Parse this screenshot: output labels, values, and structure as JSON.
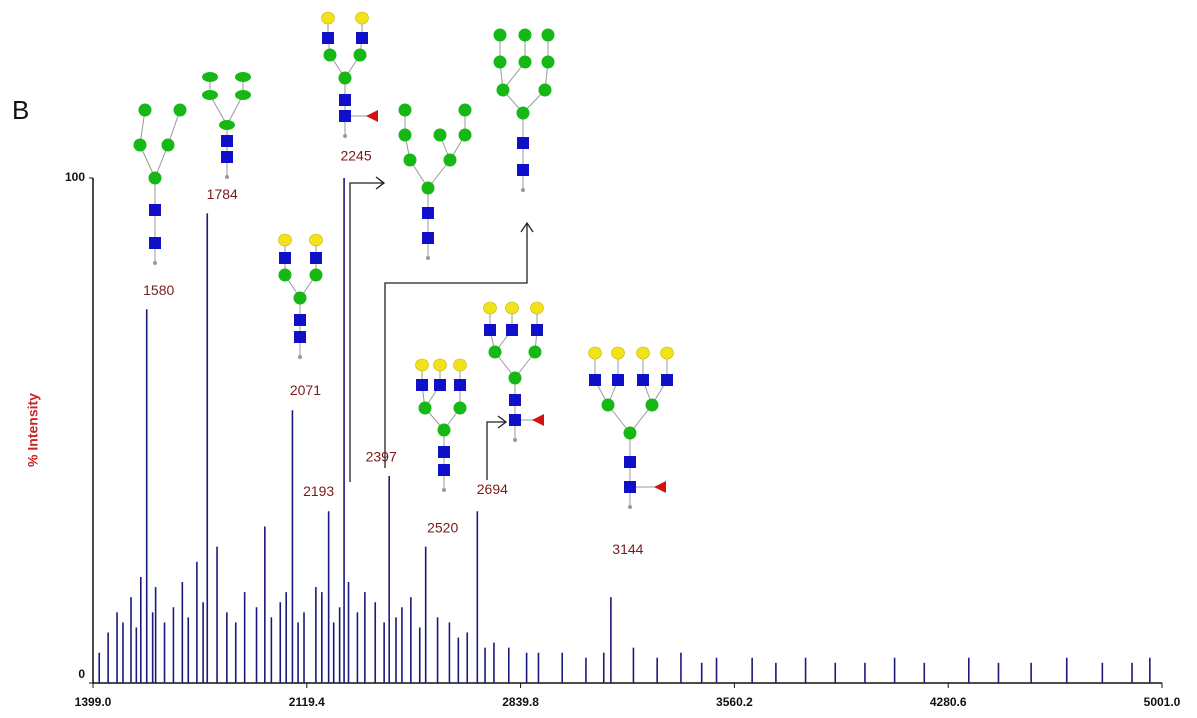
{
  "chart_data": {
    "type": "spectrum",
    "panel_label": "B",
    "y_label": "% Intensity",
    "xlim": [
      1399,
      5001
    ],
    "xticks": [
      {
        "value": 1399,
        "label": "1399.0"
      },
      2119.4,
      2839.8,
      3560.2,
      4280.6,
      {
        "value": 5001,
        "label": "5001.0"
      }
    ],
    "ylim": [
      0,
      100
    ],
    "yticks": [
      0,
      100
    ],
    "color": "#1a1a7a",
    "label_color": "#7a1a1a",
    "y_label_color": "#cc2222",
    "peaks": {
      "x": [
        1580,
        1784,
        2071,
        2193,
        2245,
        2397,
        2520,
        2694,
        3144
      ],
      "values": [
        74,
        93,
        54,
        34,
        100,
        41,
        27,
        34,
        17
      ]
    },
    "noise": {
      "x": [
        1420,
        1450,
        1480,
        1500,
        1527,
        1545,
        1560,
        1600,
        1610,
        1640,
        1670,
        1700,
        1720,
        1749,
        1770,
        1817,
        1850,
        1880,
        1910,
        1950,
        1978,
        2000,
        2030,
        2050,
        2090,
        2110,
        2150,
        2170,
        2210,
        2230,
        2260,
        2290,
        2315,
        2350,
        2380,
        2420,
        2440,
        2470,
        2500,
        2560,
        2600,
        2630,
        2660,
        2720,
        2750,
        2800,
        2860,
        2900,
        2980,
        3060,
        3120,
        3220,
        3300,
        3380,
        3450,
        3500,
        3620,
        3700,
        3800,
        3900,
        4000,
        4100,
        4200,
        4350,
        4450,
        4560,
        4680,
        4800,
        4900,
        4960
      ],
      "values": [
        6,
        10,
        14,
        12,
        17,
        11,
        21,
        14,
        19,
        12,
        15,
        20,
        13,
        24,
        16,
        27,
        14,
        12,
        18,
        15,
        31,
        13,
        16,
        18,
        12,
        14,
        19,
        18,
        12,
        15,
        20,
        14,
        18,
        16,
        12,
        13,
        15,
        17,
        11,
        13,
        12,
        9,
        10,
        7,
        8,
        7,
        6,
        6,
        6,
        5,
        6,
        7,
        5,
        6,
        4,
        5,
        5,
        4,
        5,
        4,
        4,
        5,
        4,
        5,
        4,
        4,
        5,
        4,
        4,
        5
      ]
    }
  }
}
